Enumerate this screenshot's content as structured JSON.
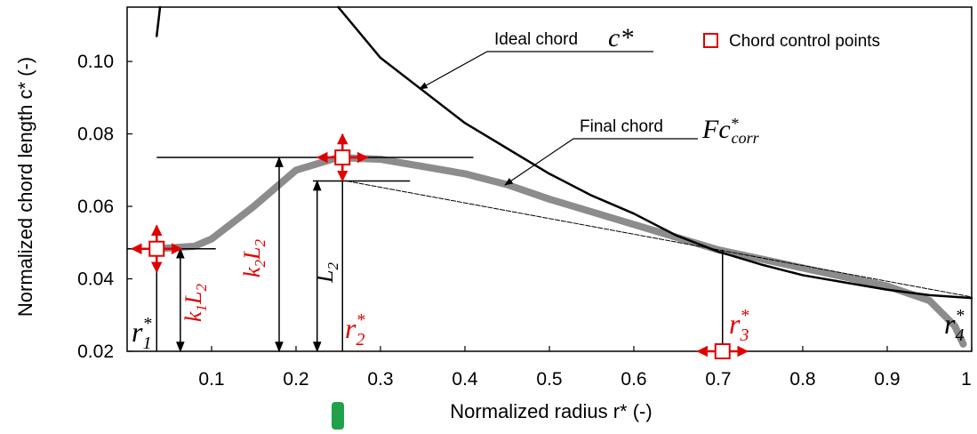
{
  "chart_data": {
    "type": "line",
    "x_label": "Normalized radius r* (-)",
    "y_label": "Normalized chord length c* (-)",
    "xlim": [
      0,
      1
    ],
    "ylim": [
      0.02,
      0.115
    ],
    "xticks": [
      0.1,
      0.2,
      0.3,
      0.4,
      0.5,
      0.6,
      0.7,
      0.8,
      0.9,
      1
    ],
    "yticks": [
      0.02,
      0.04,
      0.06,
      0.08,
      {
        "value": 0.1,
        "label": "0.10"
      }
    ],
    "series": [
      {
        "name": "Ideal chord",
        "color": "#000000",
        "x": [
          0.035,
          0.039,
          0.2,
          0.25,
          0.3,
          0.35,
          0.4,
          0.45,
          0.5,
          0.55,
          0.6,
          0.65,
          0.7,
          0.75,
          0.8,
          0.85,
          0.9,
          0.95,
          1.0
        ],
        "values": [
          0.107,
          0.115,
          null,
          0.115,
          0.101,
          0.092,
          0.083,
          0.076,
          0.069,
          0.063,
          0.058,
          0.052,
          0.0475,
          0.044,
          0.041,
          0.039,
          0.037,
          0.0355,
          0.0347
        ]
      },
      {
        "name": "Final chord",
        "color": "#8c8c8c",
        "x": [
          0.035,
          0.08,
          0.1,
          0.15,
          0.2,
          0.25,
          0.3,
          0.35,
          0.4,
          0.45,
          0.5,
          0.6,
          0.7,
          0.8,
          0.9,
          0.95,
          0.98,
          0.99
        ],
        "values": [
          0.0483,
          0.049,
          0.051,
          0.06,
          0.07,
          0.0735,
          0.073,
          0.071,
          0.069,
          0.066,
          0.062,
          0.055,
          0.048,
          0.043,
          0.038,
          0.034,
          0.027,
          0.022
        ]
      },
      {
        "name": "Chord control points",
        "color": "#e00000",
        "x": [
          0.035,
          0.255,
          0.705
        ],
        "values": [
          0.0483,
          0.0735,
          0.02
        ]
      }
    ],
    "linear_segment": {
      "x": [
        0.26,
        0.7,
        1.0
      ],
      "values": [
        0.067,
        0.048,
        0.035
      ]
    },
    "hlines": [
      {
        "y": 0.0735,
        "x": [
          0.035,
          0.41
        ]
      },
      {
        "y": 0.067,
        "x": [
          0.22,
          0.335
        ]
      },
      {
        "y": 0.0483,
        "x": [
          0.0,
          0.105
        ]
      }
    ],
    "vlines": [
      {
        "x": 0.035,
        "y": [
          0.02,
          0.0483
        ]
      },
      {
        "x": 0.063,
        "y": [
          0.02,
          0.0483
        ]
      },
      {
        "x": 0.18,
        "y": [
          0.02,
          0.0735
        ]
      },
      {
        "x": 0.225,
        "y": [
          0.02,
          0.067
        ]
      },
      {
        "x": 0.255,
        "y": [
          0.02,
          0.0735
        ]
      },
      {
        "x": 0.705,
        "y": [
          0.02,
          0.048
        ]
      }
    ],
    "annotations": {
      "ideal_symbol": "c*",
      "final_symbol": {
        "base": "Fc",
        "sup": "*",
        "sub": "corr"
      },
      "r1": {
        "base": "r",
        "sub": "1",
        "sup": "*"
      },
      "r2": {
        "base": "r",
        "sub": "2",
        "sup": "*"
      },
      "r3": {
        "base": "r",
        "sub": "3",
        "sup": "*"
      },
      "r4": {
        "base": "r",
        "sub": "4",
        "sup": "*"
      },
      "k1L2": {
        "k": "k",
        "ksub": "1",
        "L": "L",
        "Lsub": "2"
      },
      "k2L2": {
        "k": "k",
        "ksub": "2",
        "L": "L",
        "Lsub": "2"
      },
      "L2": {
        "L": "L",
        "Lsub": "2"
      }
    }
  }
}
